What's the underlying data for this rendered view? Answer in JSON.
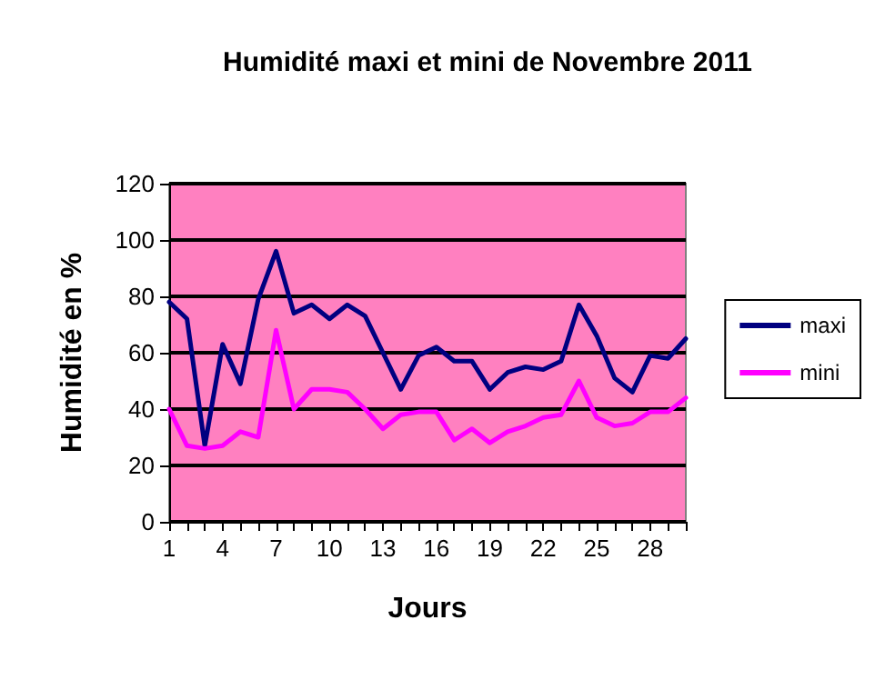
{
  "chart_data": {
    "type": "line",
    "title": "Humidité maxi et mini de Novembre 2011",
    "xlabel": "Jours",
    "ylabel": "Humidité en %",
    "categories": [
      "1",
      null,
      null,
      "4",
      null,
      null,
      "7",
      null,
      null,
      "10",
      null,
      null,
      "13",
      null,
      null,
      "16",
      null,
      null,
      "19",
      null,
      null,
      "22",
      null,
      null,
      "25",
      null,
      null,
      "28",
      null,
      null
    ],
    "series": [
      {
        "name": "maxi",
        "color": "#000080",
        "values": [
          78,
          72,
          27,
          63,
          49,
          79,
          96,
          74,
          77,
          72,
          77,
          73,
          60,
          47,
          59,
          62,
          57,
          57,
          47,
          53,
          55,
          54,
          57,
          77,
          66,
          51,
          46,
          59,
          58,
          65
        ]
      },
      {
        "name": "mini",
        "color": "#ff00ff",
        "values": [
          40,
          27,
          26,
          27,
          32,
          30,
          68,
          40,
          47,
          47,
          46,
          40,
          33,
          38,
          39,
          39,
          29,
          33,
          28,
          32,
          34,
          37,
          38,
          50,
          37,
          34,
          35,
          39,
          39,
          44
        ]
      }
    ],
    "ylim": [
      0,
      120
    ],
    "yticks": [
      0,
      20,
      40,
      60,
      80,
      100,
      120
    ],
    "grid": "y",
    "legend": "right",
    "marker": "none",
    "line_style": "solid"
  }
}
